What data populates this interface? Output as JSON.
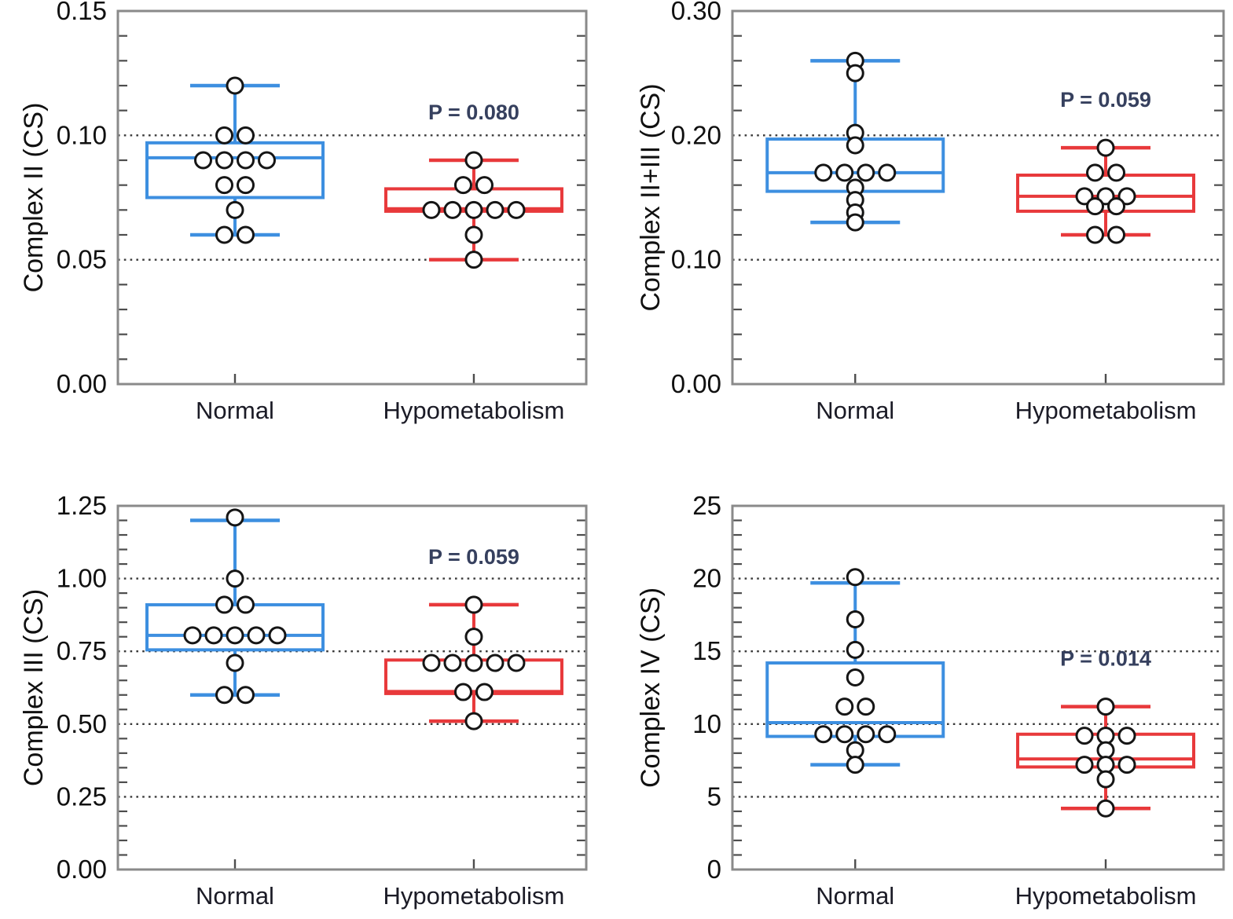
{
  "colors": {
    "normal": "#3D8FE0",
    "hypometabolism": "#E8393B",
    "frame": "#8A8A8A",
    "grid_dots": "#3A3A3A",
    "tick": "#4D4D4D",
    "axis_text": "#101010",
    "category_text": "#1B1B26",
    "p_text": "#36405E",
    "point_stroke": "#151515",
    "point_fill": "#FFFFFF"
  },
  "chart_data": [
    {
      "type": "box",
      "ylabel": "Complex II (CS)",
      "ylim": [
        0,
        0.15
      ],
      "yticks": [
        0,
        0.05,
        0.1,
        0.15
      ],
      "ytick_labels": [
        "0.00",
        "0.05",
        "0.10",
        "0.15"
      ],
      "minor_step": 0.01,
      "gridlines": [
        0.05,
        0.1
      ],
      "p_label": "P = 0.080",
      "categories": [
        "Normal",
        "Hypometabolism"
      ],
      "series": [
        {
          "name": "Normal",
          "color_key": "normal",
          "box": {
            "whisker_low": 0.06,
            "q1": 0.075,
            "median": 0.091,
            "q3": 0.097,
            "whisker_high": 0.12
          },
          "points": [
            0.12,
            0.1,
            0.1,
            0.09,
            0.09,
            0.09,
            0.09,
            0.08,
            0.08,
            0.07,
            0.06,
            0.06
          ]
        },
        {
          "name": "Hypometabolism",
          "color_key": "hypometabolism",
          "box": {
            "whisker_low": 0.05,
            "q1": 0.0695,
            "median": 0.0705,
            "q3": 0.0785,
            "whisker_high": 0.09
          },
          "points": [
            0.09,
            0.08,
            0.08,
            0.07,
            0.07,
            0.07,
            0.07,
            0.07,
            0.06,
            0.05
          ]
        }
      ]
    },
    {
      "type": "box",
      "ylabel": "Complex II+III (CS)",
      "ylim": [
        0,
        0.3
      ],
      "yticks": [
        0,
        0.1,
        0.2,
        0.3
      ],
      "ytick_labels": [
        "0.00",
        "0.10",
        "0.20",
        "0.30"
      ],
      "minor_step": 0.02,
      "gridlines": [
        0.1,
        0.2
      ],
      "p_label": "P = 0.059",
      "categories": [
        "Normal",
        "Hypometabolism"
      ],
      "series": [
        {
          "name": "Normal",
          "color_key": "normal",
          "box": {
            "whisker_low": 0.13,
            "q1": 0.155,
            "median": 0.17,
            "q3": 0.197,
            "whisker_high": 0.26
          },
          "points": [
            0.26,
            0.25,
            0.202,
            0.192,
            0.17,
            0.17,
            0.17,
            0.17,
            0.158,
            0.148,
            0.138,
            0.13
          ]
        },
        {
          "name": "Hypometabolism",
          "color_key": "hypometabolism",
          "box": {
            "whisker_low": 0.12,
            "q1": 0.139,
            "median": 0.151,
            "q3": 0.168,
            "whisker_high": 0.19
          },
          "points": [
            0.19,
            0.17,
            0.17,
            0.151,
            0.151,
            0.151,
            0.143,
            0.143,
            0.12,
            0.12
          ]
        }
      ]
    },
    {
      "type": "box",
      "ylabel": "Complex III (CS)",
      "ylim": [
        0,
        1.25
      ],
      "yticks": [
        0,
        0.25,
        0.5,
        0.75,
        1.0,
        1.25
      ],
      "ytick_labels": [
        "0.00",
        "0.25",
        "0.50",
        "0.75",
        "1.00",
        "1.25"
      ],
      "minor_step": 0.05,
      "gridlines": [
        0.25,
        0.5,
        0.75,
        1.0
      ],
      "p_label": "P = 0.059",
      "categories": [
        "Normal",
        "Hypometabolism"
      ],
      "series": [
        {
          "name": "Normal",
          "color_key": "normal",
          "box": {
            "whisker_low": 0.6,
            "q1": 0.755,
            "median": 0.805,
            "q3": 0.91,
            "whisker_high": 1.2
          },
          "points": [
            1.21,
            1.0,
            0.91,
            0.91,
            0.805,
            0.805,
            0.805,
            0.805,
            0.805,
            0.71,
            0.6,
            0.6
          ]
        },
        {
          "name": "Hypometabolism",
          "color_key": "hypometabolism",
          "box": {
            "whisker_low": 0.51,
            "q1": 0.605,
            "median": 0.612,
            "q3": 0.72,
            "whisker_high": 0.91
          },
          "points": [
            0.91,
            0.8,
            0.71,
            0.71,
            0.71,
            0.71,
            0.71,
            0.61,
            0.61,
            0.51
          ]
        }
      ]
    },
    {
      "type": "box",
      "ylabel": "Complex IV (CS)",
      "ylim": [
        0,
        25
      ],
      "yticks": [
        0,
        5,
        10,
        15,
        20,
        25
      ],
      "ytick_labels": [
        "0",
        "5",
        "10",
        "15",
        "20",
        "25"
      ],
      "minor_step": 1,
      "gridlines": [
        5,
        10,
        15,
        20
      ],
      "p_label": "P = 0.014",
      "categories": [
        "Normal",
        "Hypometabolism"
      ],
      "series": [
        {
          "name": "Normal",
          "color_key": "normal",
          "box": {
            "whisker_low": 7.2,
            "q1": 9.15,
            "median": 10.1,
            "q3": 14.2,
            "whisker_high": 19.7
          },
          "points": [
            20.1,
            17.2,
            15.1,
            13.2,
            11.2,
            11.2,
            9.3,
            9.3,
            9.3,
            9.3,
            8.2,
            7.2
          ]
        },
        {
          "name": "Hypometabolism",
          "color_key": "hypometabolism",
          "box": {
            "whisker_low": 4.2,
            "q1": 7.05,
            "median": 7.6,
            "q3": 9.3,
            "whisker_high": 11.2
          },
          "points": [
            11.2,
            9.2,
            9.2,
            9.2,
            8.2,
            7.2,
            7.2,
            7.2,
            6.2,
            4.2
          ]
        }
      ]
    }
  ]
}
